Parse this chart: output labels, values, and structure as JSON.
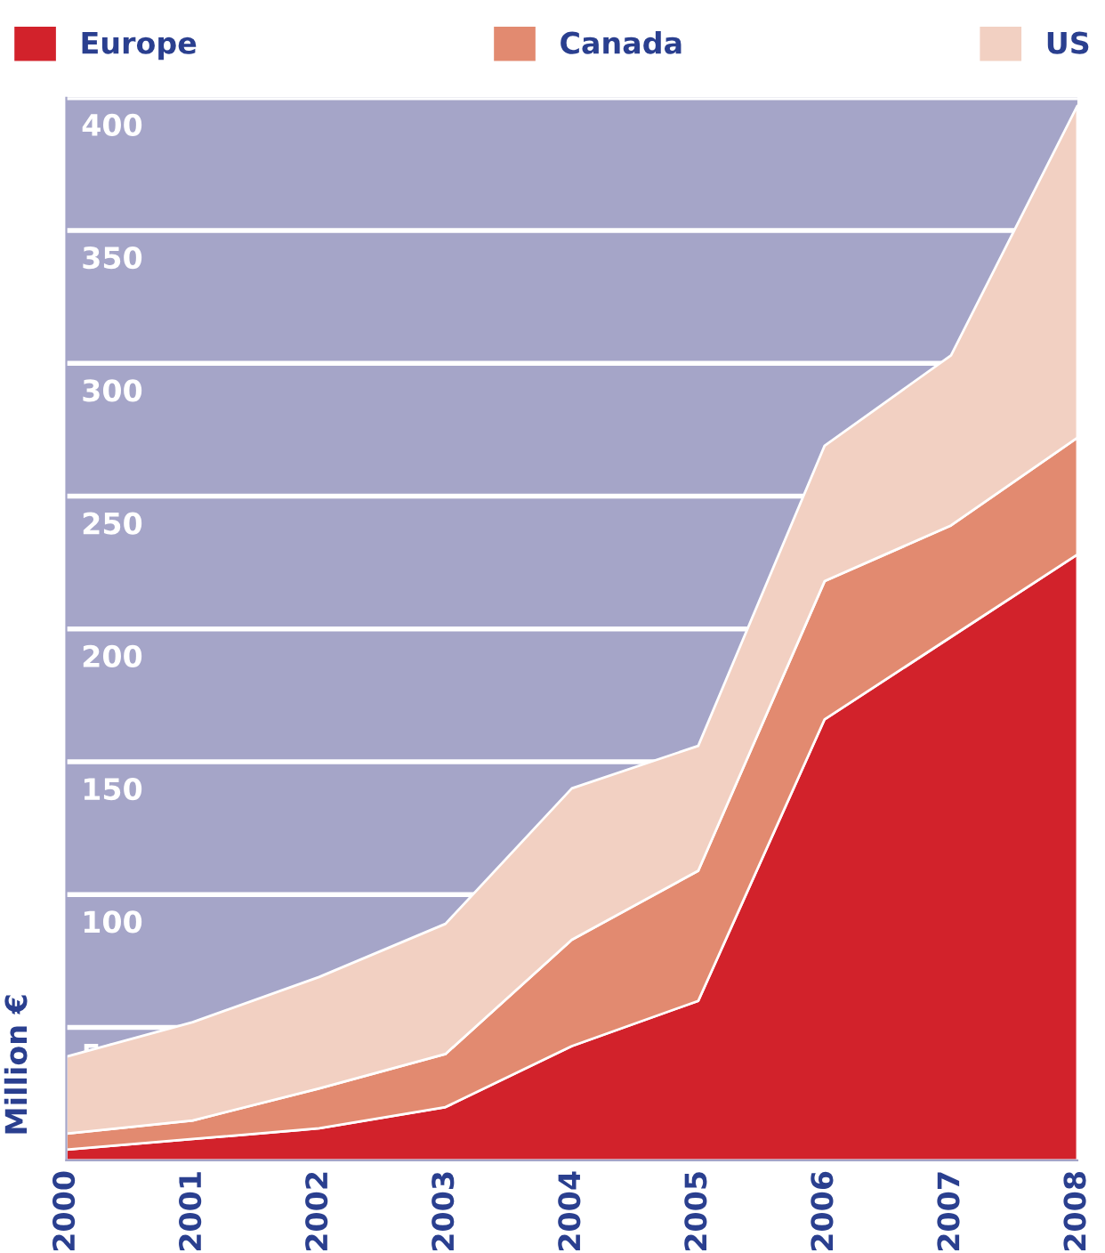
{
  "chart_data": {
    "type": "area",
    "stacked": true,
    "ylabel": "Million €",
    "categories": [
      "2000",
      "2001",
      "2002",
      "2003",
      "2004",
      "2005",
      "2006",
      "2007",
      "2008"
    ],
    "series": [
      {
        "name": "Europe",
        "color": "#d2222b",
        "values": [
          4,
          8,
          12,
          20,
          43,
          60,
          166,
          197,
          228
        ]
      },
      {
        "name": "Canada",
        "color": "#e28a70",
        "values": [
          6,
          7,
          15,
          20,
          40,
          49,
          52,
          42,
          44
        ]
      },
      {
        "name": "US",
        "color": "#f2d0c2",
        "values": [
          29,
          37,
          42,
          49,
          57,
          47,
          51,
          64,
          125
        ]
      }
    ],
    "ylim": [
      0,
      400
    ],
    "yticks": [
      50,
      100,
      150,
      200,
      250,
      300,
      350,
      400
    ],
    "grid": "y",
    "legend": "top"
  }
}
